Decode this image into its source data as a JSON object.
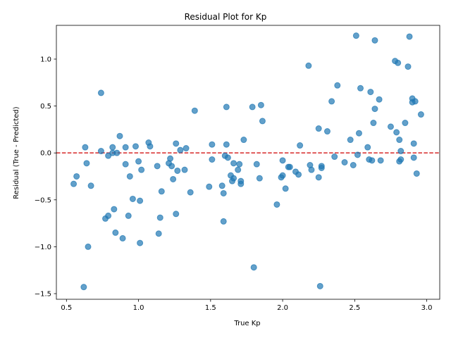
{
  "chart_data": {
    "type": "scatter",
    "title": "Residual Plot for Kp",
    "xlabel": "True Kp",
    "ylabel": "Residual (True - Predicted)",
    "xlim": [
      0.43,
      3.09
    ],
    "ylim": [
      -1.56,
      1.36
    ],
    "xticks": [
      0.5,
      1.0,
      1.5,
      2.0,
      2.5,
      3.0
    ],
    "xtick_labels": [
      "0.5",
      "1.0",
      "1.5",
      "2.0",
      "2.5",
      "3.0"
    ],
    "yticks": [
      -1.5,
      -1.0,
      -0.5,
      0.0,
      0.5,
      1.0
    ],
    "ytick_labels": [
      "−1.5",
      "−1.0",
      "−0.5",
      "0.0",
      "0.5",
      "1.0"
    ],
    "grid": false,
    "reference_line": {
      "y": 0,
      "style": "dashed",
      "color": "#d62728"
    },
    "colors": {
      "points": "#1f77b4"
    },
    "series": [
      {
        "points": [
          [
            0.55,
            -0.33
          ],
          [
            0.57,
            -0.25
          ],
          [
            0.62,
            -1.43
          ],
          [
            0.63,
            0.06
          ],
          [
            0.64,
            -0.11
          ],
          [
            0.65,
            -1.0
          ],
          [
            0.67,
            -0.35
          ],
          [
            0.74,
            0.02
          ],
          [
            0.74,
            0.64
          ],
          [
            0.77,
            -0.7
          ],
          [
            0.79,
            -0.67
          ],
          [
            0.79,
            -0.03
          ],
          [
            0.82,
            0.0
          ],
          [
            0.82,
            0.06
          ],
          [
            0.83,
            -0.6
          ],
          [
            0.84,
            -0.85
          ],
          [
            0.85,
            0.0
          ],
          [
            0.87,
            0.18
          ],
          [
            0.89,
            -0.91
          ],
          [
            0.91,
            0.06
          ],
          [
            0.91,
            -0.12
          ],
          [
            0.93,
            -0.67
          ],
          [
            0.94,
            -0.25
          ],
          [
            0.96,
            -0.49
          ],
          [
            0.98,
            0.07
          ],
          [
            1.0,
            -0.09
          ],
          [
            1.01,
            -0.96
          ],
          [
            1.01,
            -0.51
          ],
          [
            1.02,
            -0.18
          ],
          [
            1.07,
            0.11
          ],
          [
            1.08,
            0.07
          ],
          [
            1.13,
            -0.14
          ],
          [
            1.14,
            -0.86
          ],
          [
            1.15,
            -0.69
          ],
          [
            1.16,
            -0.41
          ],
          [
            1.21,
            -0.11
          ],
          [
            1.22,
            -0.06
          ],
          [
            1.23,
            -0.14
          ],
          [
            1.24,
            -0.28
          ],
          [
            1.26,
            0.1
          ],
          [
            1.26,
            -0.65
          ],
          [
            1.27,
            -0.19
          ],
          [
            1.29,
            0.03
          ],
          [
            1.32,
            -0.18
          ],
          [
            1.33,
            0.05
          ],
          [
            1.36,
            -0.42
          ],
          [
            1.39,
            0.45
          ],
          [
            1.49,
            -0.36
          ],
          [
            1.51,
            -0.07
          ],
          [
            1.51,
            0.09
          ],
          [
            1.58,
            -0.35
          ],
          [
            1.59,
            -0.73
          ],
          [
            1.59,
            -0.43
          ],
          [
            1.6,
            -0.03
          ],
          [
            1.61,
            0.49
          ],
          [
            1.61,
            0.09
          ],
          [
            1.62,
            -0.05
          ],
          [
            1.64,
            -0.24
          ],
          [
            1.65,
            -0.3
          ],
          [
            1.66,
            -0.27
          ],
          [
            1.66,
            -0.11
          ],
          [
            1.69,
            -0.18
          ],
          [
            1.7,
            -0.12
          ],
          [
            1.71,
            -0.33
          ],
          [
            1.71,
            -0.3
          ],
          [
            1.73,
            0.14
          ],
          [
            1.79,
            0.49
          ],
          [
            1.8,
            -1.22
          ],
          [
            1.82,
            -0.12
          ],
          [
            1.84,
            -0.27
          ],
          [
            1.85,
            0.51
          ],
          [
            1.86,
            0.34
          ],
          [
            1.96,
            -0.55
          ],
          [
            1.99,
            -0.26
          ],
          [
            2.0,
            -0.24
          ],
          [
            2.0,
            -0.08
          ],
          [
            2.02,
            -0.38
          ],
          [
            2.04,
            -0.15
          ],
          [
            2.05,
            -0.15
          ],
          [
            2.09,
            -0.2
          ],
          [
            2.11,
            -0.23
          ],
          [
            2.12,
            0.08
          ],
          [
            2.18,
            0.93
          ],
          [
            2.19,
            -0.13
          ],
          [
            2.2,
            -0.18
          ],
          [
            2.25,
            0.26
          ],
          [
            2.25,
            -0.26
          ],
          [
            2.26,
            -1.42
          ],
          [
            2.27,
            -0.14
          ],
          [
            2.27,
            -0.16
          ],
          [
            2.31,
            0.23
          ],
          [
            2.34,
            0.55
          ],
          [
            2.36,
            -0.04
          ],
          [
            2.38,
            0.72
          ],
          [
            2.43,
            -0.1
          ],
          [
            2.47,
            0.14
          ],
          [
            2.49,
            -0.13
          ],
          [
            2.51,
            1.25
          ],
          [
            2.52,
            -0.02
          ],
          [
            2.53,
            0.21
          ],
          [
            2.54,
            0.69
          ],
          [
            2.59,
            0.06
          ],
          [
            2.6,
            -0.07
          ],
          [
            2.61,
            0.65
          ],
          [
            2.62,
            -0.08
          ],
          [
            2.63,
            0.32
          ],
          [
            2.64,
            1.2
          ],
          [
            2.64,
            0.47
          ],
          [
            2.67,
            0.57
          ],
          [
            2.68,
            -0.08
          ],
          [
            2.75,
            0.28
          ],
          [
            2.78,
            0.98
          ],
          [
            2.79,
            0.22
          ],
          [
            2.8,
            0.96
          ],
          [
            2.81,
            0.14
          ],
          [
            2.81,
            -0.09
          ],
          [
            2.82,
            -0.07
          ],
          [
            2.82,
            0.02
          ],
          [
            2.85,
            0.32
          ],
          [
            2.87,
            0.92
          ],
          [
            2.88,
            1.24
          ],
          [
            2.9,
            0.58
          ],
          [
            2.9,
            0.54
          ],
          [
            2.91,
            0.1
          ],
          [
            2.91,
            -0.05
          ],
          [
            2.92,
            0.55
          ],
          [
            2.93,
            -0.22
          ],
          [
            2.96,
            0.41
          ]
        ]
      }
    ]
  }
}
